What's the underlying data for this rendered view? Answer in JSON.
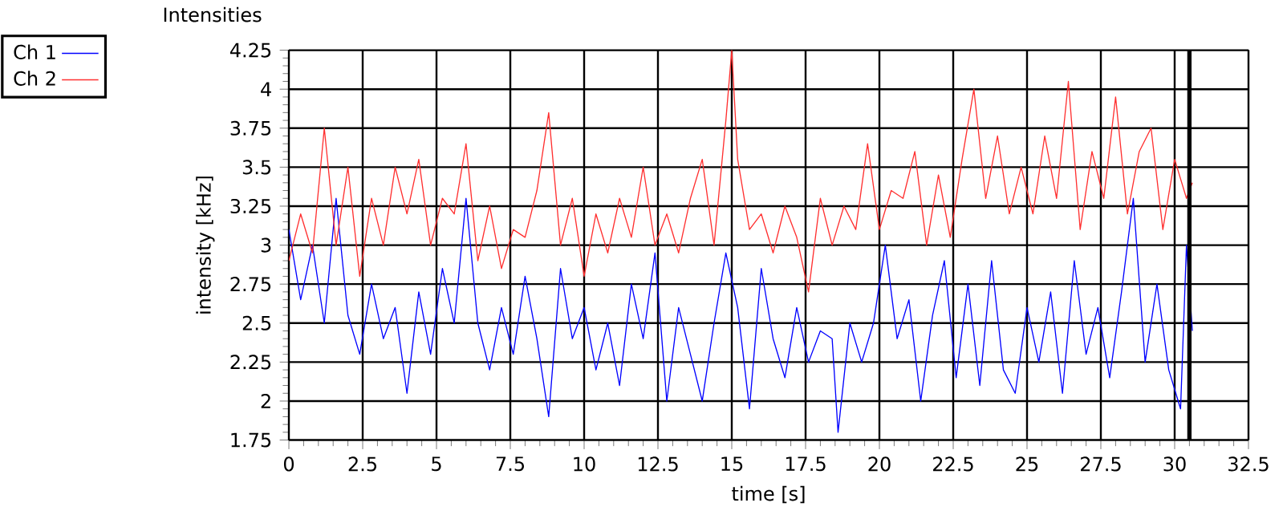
{
  "chart_data": {
    "type": "line",
    "title": "Intensities",
    "xlabel": "time [s]",
    "ylabel": "intensity [kHz]",
    "xlim": [
      0,
      32.5
    ],
    "xticks": [
      0,
      2.5,
      5,
      7.5,
      10,
      12.5,
      15,
      17.5,
      20,
      22.5,
      25,
      27.5,
      30,
      32.5
    ],
    "ylim": [
      1.75,
      4.25
    ],
    "yticks": [
      1.75,
      2,
      2.25,
      2.5,
      2.75,
      3,
      3.25,
      3.5,
      3.75,
      4,
      4.25
    ],
    "grid": true,
    "legend": "top left",
    "ref_lines": [
      {
        "axis": "x",
        "value": 30.5,
        "color": "#000000"
      }
    ],
    "series": [
      {
        "name": "Ch 1",
        "color": "#0000ff",
        "x": [
          0,
          0.4,
          0.8,
          1.2,
          1.6,
          2.0,
          2.4,
          2.8,
          3.2,
          3.6,
          4.0,
          4.4,
          4.8,
          5.2,
          5.6,
          6.0,
          6.4,
          6.8,
          7.2,
          7.6,
          8.0,
          8.4,
          8.8,
          9.2,
          9.6,
          10.0,
          10.4,
          10.8,
          11.2,
          11.6,
          12.0,
          12.4,
          12.8,
          13.2,
          13.6,
          14.0,
          14.4,
          14.8,
          15.2,
          15.6,
          16.0,
          16.4,
          16.8,
          17.2,
          17.6,
          18.0,
          18.4,
          18.6,
          19.0,
          19.4,
          19.8,
          20.2,
          20.6,
          21.0,
          21.4,
          21.8,
          22.2,
          22.6,
          23.0,
          23.4,
          23.8,
          24.2,
          24.6,
          25.0,
          25.4,
          25.8,
          26.2,
          26.6,
          27.0,
          27.4,
          27.8,
          28.2,
          28.6,
          29.0,
          29.4,
          29.8,
          30.2,
          30.4,
          30.6
        ],
        "values": [
          3.1,
          2.65,
          3.0,
          2.5,
          3.3,
          2.55,
          2.3,
          2.75,
          2.4,
          2.6,
          2.05,
          2.7,
          2.3,
          2.85,
          2.5,
          3.3,
          2.5,
          2.2,
          2.6,
          2.3,
          2.8,
          2.4,
          1.9,
          2.85,
          2.4,
          2.6,
          2.2,
          2.5,
          2.1,
          2.75,
          2.4,
          2.95,
          2.0,
          2.6,
          2.3,
          2.0,
          2.5,
          2.95,
          2.6,
          1.95,
          2.85,
          2.4,
          2.15,
          2.6,
          2.25,
          2.45,
          2.4,
          1.8,
          2.5,
          2.25,
          2.5,
          3.0,
          2.4,
          2.65,
          2.0,
          2.55,
          2.9,
          2.15,
          2.75,
          2.1,
          2.9,
          2.2,
          2.05,
          2.6,
          2.25,
          2.7,
          2.05,
          2.9,
          2.3,
          2.6,
          2.15,
          2.7,
          3.3,
          2.25,
          2.75,
          2.2,
          1.95,
          3.0,
          2.45
        ]
      },
      {
        "name": "Ch 2",
        "color": "#ff3030",
        "x": [
          0,
          0.4,
          0.8,
          1.2,
          1.6,
          2.0,
          2.4,
          2.8,
          3.2,
          3.6,
          4.0,
          4.4,
          4.8,
          5.2,
          5.6,
          6.0,
          6.4,
          6.8,
          7.2,
          7.6,
          8.0,
          8.4,
          8.8,
          9.2,
          9.6,
          10.0,
          10.4,
          10.8,
          11.2,
          11.6,
          12.0,
          12.4,
          12.8,
          13.2,
          13.6,
          14.0,
          14.4,
          14.8,
          15.0,
          15.2,
          15.6,
          16.0,
          16.4,
          16.8,
          17.2,
          17.6,
          18.0,
          18.4,
          18.8,
          19.2,
          19.6,
          20.0,
          20.4,
          20.8,
          21.2,
          21.6,
          22.0,
          22.4,
          22.8,
          23.2,
          23.6,
          24.0,
          24.4,
          24.8,
          25.2,
          25.6,
          26.0,
          26.4,
          26.8,
          27.2,
          27.6,
          28.0,
          28.4,
          28.8,
          29.2,
          29.6,
          30.0,
          30.4,
          30.6
        ],
        "values": [
          2.9,
          3.2,
          2.95,
          3.75,
          3.0,
          3.5,
          2.8,
          3.3,
          3.0,
          3.5,
          3.2,
          3.55,
          3.0,
          3.3,
          3.2,
          3.65,
          2.9,
          3.25,
          2.85,
          3.1,
          3.05,
          3.35,
          3.85,
          3.0,
          3.3,
          2.8,
          3.2,
          2.95,
          3.3,
          3.05,
          3.5,
          3.0,
          3.2,
          2.95,
          3.3,
          3.55,
          3.0,
          3.8,
          4.25,
          3.55,
          3.1,
          3.2,
          2.95,
          3.25,
          3.05,
          2.7,
          3.3,
          3.0,
          3.25,
          3.1,
          3.65,
          3.1,
          3.35,
          3.3,
          3.6,
          3.0,
          3.45,
          3.05,
          3.55,
          4.0,
          3.3,
          3.7,
          3.2,
          3.5,
          3.2,
          3.7,
          3.3,
          4.05,
          3.1,
          3.6,
          3.3,
          3.95,
          3.2,
          3.6,
          3.75,
          3.1,
          3.55,
          3.3,
          3.4
        ]
      }
    ]
  }
}
